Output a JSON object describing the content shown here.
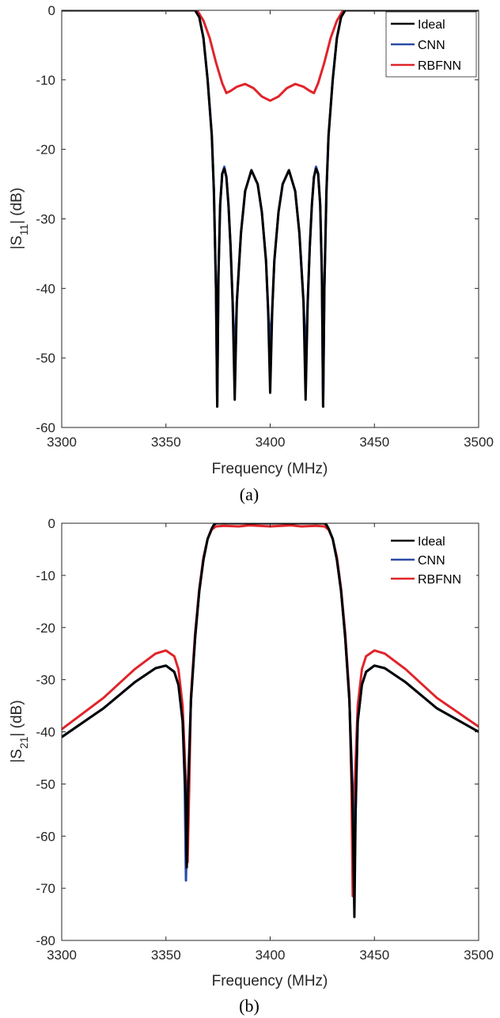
{
  "chart_data": [
    {
      "type": "line",
      "caption": "(a)",
      "xlabel": "Frequency (MHz)",
      "ylabel": {
        "prefix": "|S",
        "sub": "11",
        "suffix": "| (dB)"
      },
      "xlim": [
        3300,
        3500
      ],
      "ylim": [
        -60,
        0
      ],
      "xticks": [
        3300,
        3350,
        3400,
        3450,
        3500
      ],
      "yticks": [
        0,
        -10,
        -20,
        -30,
        -40,
        -50,
        -60
      ],
      "legend_position": "top-right",
      "legend": [
        "Ideal",
        "CNN",
        "RBFNN"
      ],
      "colors": {
        "Ideal": "#000000",
        "CNN": "#2a4ca6",
        "RBFNN": "#e0242a"
      },
      "series": [
        {
          "name": "Ideal",
          "x": [
            3300,
            3364,
            3366,
            3368,
            3370,
            3372,
            3373,
            3374,
            3374.6,
            3375.2,
            3376,
            3377,
            3378,
            3379,
            3380,
            3381,
            3382,
            3383,
            3384,
            3386,
            3388,
            3391,
            3394,
            3396,
            3398,
            3399,
            3400,
            3401,
            3402,
            3404,
            3406,
            3409,
            3412,
            3414,
            3416,
            3417,
            3418,
            3419,
            3420,
            3421,
            3422,
            3423,
            3424,
            3424.8,
            3425.4,
            3426,
            3427,
            3428,
            3430,
            3432,
            3434,
            3436,
            3500
          ],
          "y": [
            0,
            0,
            -1,
            -4,
            -10,
            -18,
            -26,
            -40,
            -57,
            -38,
            -28,
            -23.5,
            -22.8,
            -24,
            -28,
            -34,
            -42,
            -56,
            -42,
            -32,
            -26,
            -23,
            -25,
            -29,
            -36,
            -43,
            -55,
            -43,
            -36,
            -29,
            -25,
            -23,
            -26,
            -32,
            -42,
            -56,
            -42,
            -34,
            -28,
            -24,
            -22.8,
            -23.5,
            -28,
            -38,
            -57,
            -40,
            -26,
            -18,
            -10,
            -4,
            -1,
            0,
            0
          ]
        },
        {
          "name": "CNN",
          "x": [
            3300,
            3364,
            3366,
            3368,
            3370,
            3372,
            3373,
            3374,
            3374.6,
            3375.2,
            3376,
            3377,
            3378,
            3379,
            3380,
            3381,
            3382,
            3383,
            3384,
            3386,
            3388,
            3391,
            3394,
            3396,
            3398,
            3399,
            3400,
            3401,
            3402,
            3404,
            3406,
            3409,
            3412,
            3414,
            3416,
            3417,
            3418,
            3419,
            3420,
            3421,
            3422,
            3423,
            3424,
            3424.8,
            3425.4,
            3426,
            3427,
            3428,
            3430,
            3432,
            3434,
            3436,
            3500
          ],
          "y": [
            0,
            0,
            -1,
            -4,
            -10,
            -18,
            -26,
            -40,
            -57,
            -38,
            -28,
            -23.5,
            -22.5,
            -24,
            -28,
            -34,
            -42,
            -50,
            -42,
            -32,
            -26,
            -23,
            -25,
            -29,
            -36,
            -43,
            -48,
            -43,
            -36,
            -29,
            -25,
            -23,
            -26,
            -32,
            -42,
            -50,
            -42,
            -34,
            -28,
            -24,
            -22.5,
            -23.5,
            -28,
            -38,
            -57,
            -40,
            -26,
            -18,
            -10,
            -4,
            -1,
            0,
            0
          ]
        },
        {
          "name": "RBFNN",
          "x": [
            3300,
            3365,
            3368,
            3371,
            3374,
            3377,
            3379,
            3381,
            3384,
            3388,
            3392,
            3396,
            3400,
            3404,
            3408,
            3412,
            3416,
            3419,
            3421,
            3423,
            3426,
            3429,
            3432,
            3435,
            3500
          ],
          "y": [
            0,
            0,
            -1.5,
            -4,
            -7.5,
            -10.5,
            -11.9,
            -11.6,
            -11,
            -10.6,
            -11.2,
            -12.4,
            -13,
            -12.4,
            -11.2,
            -10.6,
            -11,
            -11.6,
            -11.9,
            -10.5,
            -7.5,
            -4,
            -1.5,
            0,
            0
          ]
        }
      ]
    },
    {
      "type": "line",
      "caption": "(b)",
      "xlabel": "Frequency (MHz)",
      "ylabel": {
        "prefix": "|S",
        "sub": "21",
        "suffix": "| (dB)"
      },
      "xlim": [
        3300,
        3500
      ],
      "ylim": [
        -80,
        0
      ],
      "xticks": [
        3300,
        3350,
        3400,
        3450,
        3500
      ],
      "yticks": [
        0,
        -10,
        -20,
        -30,
        -40,
        -50,
        -60,
        -70,
        -80
      ],
      "legend_position": "top-right",
      "legend": [
        "Ideal",
        "CNN",
        "RBFNN"
      ],
      "colors": {
        "Ideal": "#000000",
        "CNN": "#2a4ca6",
        "RBFNN": "#e0242a"
      },
      "series": [
        {
          "name": "Ideal",
          "x": [
            3300,
            3320,
            3335,
            3345,
            3350,
            3354,
            3356,
            3358,
            3359.4,
            3360,
            3360.6,
            3362,
            3364,
            3366,
            3368,
            3370,
            3372,
            3373,
            3374,
            3380,
            3390,
            3400,
            3410,
            3420,
            3426,
            3427,
            3428,
            3430,
            3432,
            3434,
            3436,
            3438,
            3439.6,
            3440.4,
            3441,
            3442,
            3444,
            3446,
            3450,
            3455,
            3465,
            3480,
            3500
          ],
          "y": [
            -41,
            -35.5,
            -30.5,
            -27.8,
            -27.3,
            -28.5,
            -31,
            -38,
            -52,
            -66,
            -52,
            -34,
            -22,
            -13,
            -7,
            -3,
            -1,
            -0.3,
            0,
            0,
            0,
            0,
            0,
            0,
            0,
            -0.3,
            -1,
            -3,
            -7,
            -13,
            -22,
            -34,
            -55,
            -75.5,
            -55,
            -38,
            -31,
            -28.5,
            -27.3,
            -27.8,
            -30.5,
            -35.5,
            -40
          ]
        },
        {
          "name": "CNN",
          "x": [
            3300,
            3320,
            3335,
            3345,
            3350,
            3354,
            3356,
            3358,
            3359,
            3359.6,
            3360.4,
            3362,
            3364,
            3366,
            3368,
            3370,
            3372,
            3373,
            3374,
            3380,
            3390,
            3400,
            3410,
            3420,
            3426,
            3427,
            3428,
            3430,
            3432,
            3434,
            3436,
            3438,
            3439.6,
            3440.4,
            3441,
            3442,
            3444,
            3446,
            3450,
            3455,
            3465,
            3480,
            3500
          ],
          "y": [
            -41,
            -35.5,
            -30.5,
            -27.8,
            -27.3,
            -28.5,
            -31,
            -38,
            -50,
            -68.5,
            -52,
            -34,
            -22,
            -13,
            -7,
            -3,
            -1,
            -0.3,
            0,
            0,
            0,
            0,
            0,
            0,
            0,
            -0.3,
            -1,
            -3,
            -7,
            -13,
            -22,
            -34,
            -52,
            -64,
            -55,
            -38,
            -31,
            -28.5,
            -27.3,
            -27.8,
            -30.5,
            -35.5,
            -40
          ]
        },
        {
          "name": "RBFNN",
          "x": [
            3300,
            3320,
            3335,
            3345,
            3350,
            3354,
            3356,
            3358,
            3359.6,
            3360.4,
            3361.2,
            3362,
            3364,
            3366,
            3368,
            3370,
            3372,
            3374,
            3378,
            3385,
            3390,
            3400,
            3410,
            3415,
            3422,
            3426,
            3428,
            3430,
            3432,
            3434,
            3436,
            3438,
            3439,
            3439.6,
            3440.4,
            3442,
            3444,
            3446,
            3450,
            3455,
            3465,
            3480,
            3500
          ],
          "y": [
            -39.5,
            -33.5,
            -28,
            -25,
            -24.4,
            -25.5,
            -28,
            -35,
            -50,
            -65,
            -50,
            -33,
            -21,
            -12.5,
            -6.5,
            -3,
            -1.2,
            -0.6,
            -0.5,
            -0.6,
            -0.4,
            -0.6,
            -0.4,
            -0.6,
            -0.5,
            -0.6,
            -1.2,
            -3,
            -6.5,
            -12.5,
            -21,
            -33,
            -50,
            -71.5,
            -52,
            -35,
            -28,
            -25.5,
            -24.4,
            -25,
            -28,
            -33.5,
            -39
          ]
        }
      ]
    }
  ]
}
